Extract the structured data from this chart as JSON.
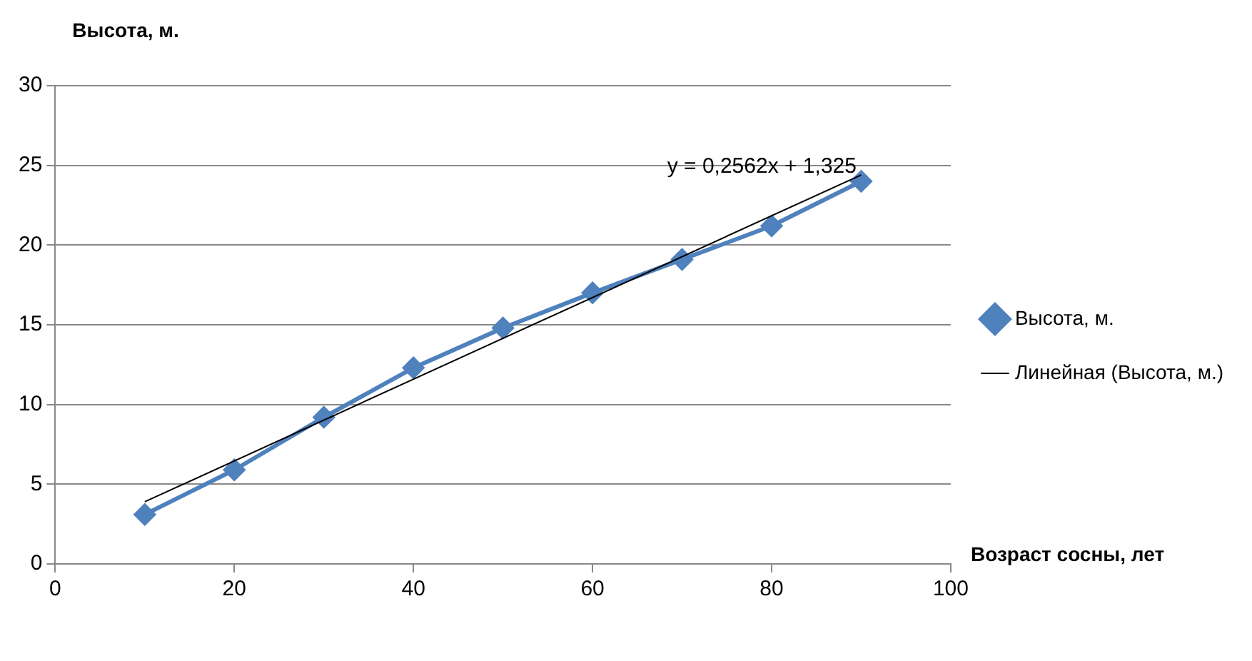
{
  "chart_data": {
    "type": "line",
    "xlabel": "Возраст сосны, лет",
    "ylabel": "Высота, м.",
    "xlim": [
      0,
      100
    ],
    "xticks": [
      0,
      20,
      40,
      60,
      80,
      100
    ],
    "ylim": [
      0,
      30
    ],
    "yticks": [
      0,
      5,
      10,
      15,
      20,
      25,
      30
    ],
    "grid": "y",
    "legend": "right",
    "series": [
      {
        "name": "Высота, м.",
        "color": "#4f81bd",
        "marker": "diamond",
        "x": [
          10,
          20,
          30,
          40,
          50,
          60,
          70,
          80,
          90
        ],
        "values": [
          3.1,
          5.9,
          9.2,
          12.3,
          14.8,
          17.0,
          19.1,
          21.2,
          24.0
        ]
      },
      {
        "name": "Линейная (Высота, м.)",
        "color": "#000000",
        "marker": "none",
        "type": "line",
        "line_style": "solid",
        "x": [
          10,
          90
        ],
        "values": [
          3.9,
          24.4
        ]
      }
    ],
    "annotations": [
      "y = 0,2562x + 1,325"
    ]
  }
}
